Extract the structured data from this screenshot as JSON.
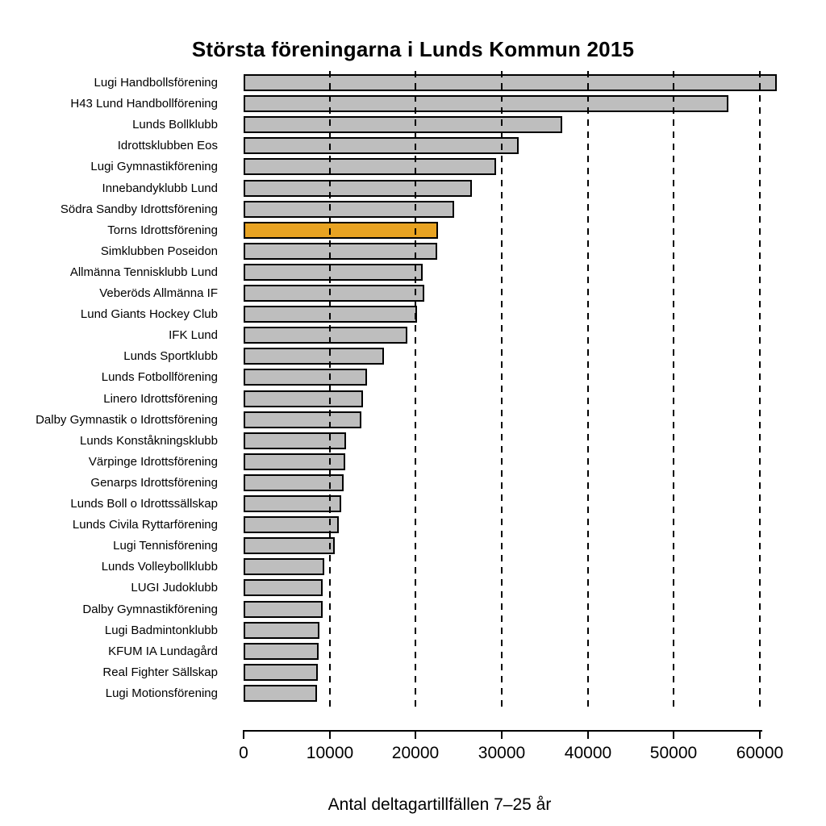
{
  "chart_data": {
    "type": "bar",
    "orientation": "horizontal",
    "title": "Största föreningarna i Lunds Kommun 2015",
    "xlabel": "Antal deltagartillfällen 7–25 år",
    "ylabel": "",
    "xlim": [
      0,
      60000
    ],
    "x_ticks": [
      0,
      10000,
      20000,
      30000,
      40000,
      50000,
      60000
    ],
    "grid": "vertical dashed black lines at each 10000, drawn over bars",
    "legend": "none",
    "categories": [
      "Lugi Handbollsförening",
      "H43 Lund Handbollförening",
      "Lunds Bollklubb",
      "Idrottsklubben Eos",
      "Lugi Gymnastikförening",
      "Innebandyklubb Lund",
      "Södra Sandby Idrottsförening",
      "Torns Idrottsförening",
      "Simklubben Poseidon",
      "Allmänna Tennisklubb Lund",
      "Veberöds Allmänna IF",
      "Lund Giants Hockey Club",
      "IFK Lund",
      "Lunds Sportklubb",
      "Lunds Fotbollförening",
      "Linero Idrottsförening",
      "Dalby Gymnastik o Idrottsförening",
      "Lunds Konståkningsklubb",
      "Värpinge Idrottsförening",
      "Genarps Idrottsförening",
      "Lunds Boll o Idrottssällskap",
      "Lunds Civila Ryttarförening",
      "Lugi Tennisförening",
      "Lunds Volleybollklubb",
      "LUGI Judoklubb",
      "Dalby Gymnastikförening",
      "Lugi Badmintonklubb",
      "KFUM IA Lundagård",
      "Real Fighter Sällskap",
      "Lugi Motionsförening"
    ],
    "values": [
      62000,
      56300,
      37000,
      32000,
      29300,
      26500,
      24500,
      22600,
      22500,
      20800,
      21000,
      20200,
      19000,
      16300,
      14300,
      13900,
      13700,
      11900,
      11850,
      11600,
      11300,
      11100,
      10600,
      9400,
      9200,
      9200,
      8800,
      8700,
      8600,
      8500
    ],
    "highlight_index": 7,
    "highlighted_category": "Torns Idrottsförening",
    "bar_color": "#BEBEBE",
    "highlight_color": "#E8A322",
    "bar_border_color": "#000000",
    "background_color": "#FFFFFF"
  }
}
